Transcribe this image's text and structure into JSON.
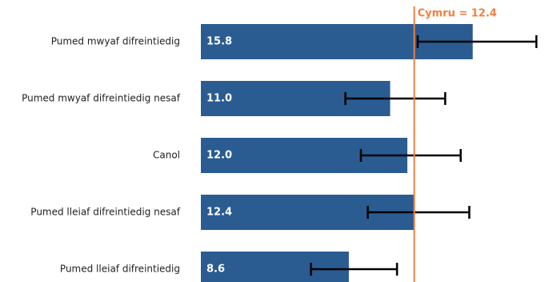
{
  "chart_data": {
    "type": "bar",
    "orientation": "horizontal",
    "categories": [
      "Pumed mwyaf difreintiedig",
      "Pumed mwyaf difreintiedig nesaf",
      "Canol",
      "Pumed lleiaf difreintiedig nesaf",
      "Pumed lleiaf difreintiedig"
    ],
    "values": [
      15.8,
      11.0,
      12.0,
      12.4,
      8.6
    ],
    "value_labels": [
      "15.8",
      "11.0",
      "12.0",
      "12.4",
      "8.6"
    ],
    "error_low": [
      12.6,
      8.4,
      9.3,
      9.7,
      6.4
    ],
    "error_high": [
      19.5,
      14.2,
      15.1,
      15.6,
      11.4
    ],
    "color": "#2a5c91",
    "error_color": "#000000",
    "xlim": [
      0,
      20
    ],
    "reference": {
      "value": 12.4,
      "label": "Cymru = 12.4",
      "color": "#f07f3c"
    }
  }
}
